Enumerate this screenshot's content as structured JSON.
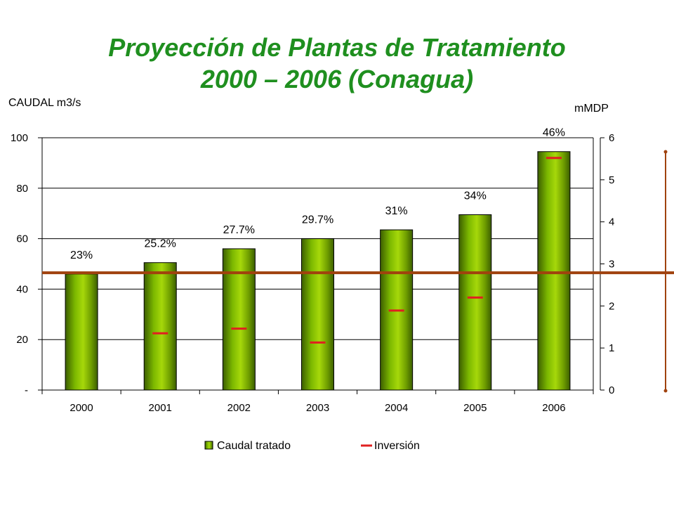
{
  "title_line1": "Proyección de Plantas de Tratamiento",
  "title_line2": "2000 – 2006 (Conagua)",
  "chart_data": {
    "type": "bar",
    "categories": [
      "2000",
      "2001",
      "2002",
      "2003",
      "2004",
      "2005",
      "2006"
    ],
    "series": [
      {
        "name": "Caudal tratado",
        "type": "bar",
        "axis": "left",
        "values": [
          46,
          50.5,
          56,
          60,
          63.5,
          69.5,
          94.5
        ],
        "color": "#6fa800"
      },
      {
        "name": "Inversión",
        "type": "line-marker",
        "axis": "right",
        "values": [
          null,
          1.35,
          1.46,
          1.13,
          1.89,
          2.2,
          5.52
        ],
        "color": "#e02020"
      }
    ],
    "bar_labels": [
      "23%",
      "25.2%",
      "27.7%",
      "29.7%",
      "31%",
      "34%",
      "46%"
    ],
    "ylabel": "CAUDAL m3/s",
    "y2label": "mMDP",
    "ylim": [
      0,
      100
    ],
    "yticks": [
      0,
      20,
      40,
      60,
      80,
      100
    ],
    "ytick_labels": [
      "-",
      "20",
      "40",
      "60",
      "80",
      "100"
    ],
    "y2lim": [
      0,
      6
    ],
    "y2ticks": [
      0,
      1,
      2,
      3,
      4,
      5,
      6
    ],
    "reference_line": {
      "axis": "left",
      "value": 46.5,
      "color": "#a0420e"
    },
    "legend": [
      "Caudal tratado",
      "Inversión"
    ],
    "legend_position": "bottom",
    "grid": true
  }
}
